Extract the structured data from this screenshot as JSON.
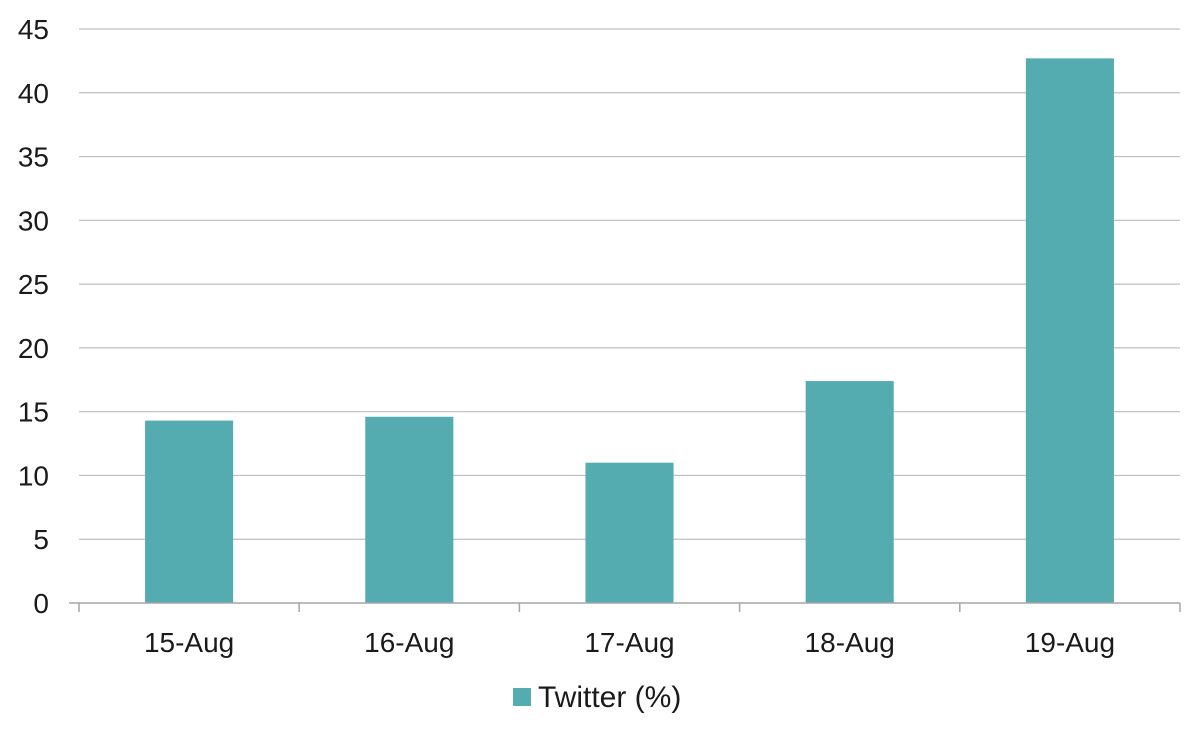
{
  "chart_data": {
    "type": "bar",
    "categories": [
      "15-Aug",
      "16-Aug",
      "17-Aug",
      "18-Aug",
      "19-Aug"
    ],
    "series": [
      {
        "name": "Twitter (%)",
        "values": [
          14.3,
          14.6,
          11.0,
          17.4,
          42.7
        ],
        "color": "#55ACB0"
      }
    ],
    "title": "",
    "xlabel": "",
    "ylabel": "",
    "ylim": [
      0,
      45
    ],
    "yticks": [
      0,
      5,
      10,
      15,
      20,
      25,
      30,
      35,
      40,
      45
    ],
    "grid": true,
    "legend": "bottom-center"
  },
  "colors": {
    "grid": "#bfbfbf",
    "axis": "#a6a6a6",
    "text": "#1a1a1a"
  }
}
